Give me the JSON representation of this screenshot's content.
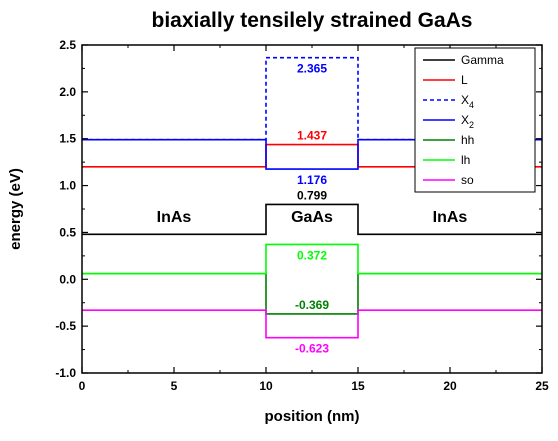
{
  "chart_data": {
    "type": "line",
    "title": "biaxially tensilely strained GaAs",
    "xlabel": "position (nm)",
    "ylabel": "energy (eV)",
    "xlim": [
      0,
      25
    ],
    "ylim": [
      -1.0,
      2.5
    ],
    "x_ticks": [
      0,
      5,
      10,
      15,
      20,
      25
    ],
    "y_ticks": [
      -1.0,
      -0.5,
      0.0,
      0.5,
      1.0,
      1.5,
      2.0,
      2.5
    ],
    "x_tick_labels": [
      "0",
      "5",
      "10",
      "15",
      "20",
      "25"
    ],
    "y_tick_labels": [
      "-1.0",
      "-0.5",
      "0.0",
      "0.5",
      "1.0",
      "1.5",
      "2.0",
      "2.5"
    ],
    "grid": false,
    "legend_position": "top-right",
    "regions": [
      {
        "label": "InAs",
        "x_center": 5
      },
      {
        "label": "GaAs",
        "x_center": 12.5
      },
      {
        "label": "InAs",
        "x_center": 20
      }
    ],
    "series": [
      {
        "name": "Gamma",
        "color": "#000000",
        "dashed": false,
        "points": [
          [
            0,
            0.48
          ],
          [
            10,
            0.48
          ],
          [
            10,
            0.799
          ],
          [
            15,
            0.799
          ],
          [
            15,
            0.48
          ],
          [
            25,
            0.48
          ]
        ]
      },
      {
        "name": "L",
        "color": "#ff0000",
        "dashed": false,
        "points": [
          [
            0,
            1.2
          ],
          [
            10,
            1.2
          ],
          [
            10,
            1.437
          ],
          [
            15,
            1.437
          ],
          [
            15,
            1.2
          ],
          [
            25,
            1.2
          ]
        ]
      },
      {
        "name": "X",
        "subscript": "4",
        "color": "#0000ff",
        "dashed": true,
        "points": [
          [
            0,
            1.49
          ],
          [
            10,
            1.49
          ],
          [
            10,
            2.365
          ],
          [
            15,
            2.365
          ],
          [
            15,
            1.49
          ],
          [
            25,
            1.49
          ]
        ]
      },
      {
        "name": "X",
        "subscript": "2",
        "color": "#0000ff",
        "dashed": false,
        "points": [
          [
            0,
            1.49
          ],
          [
            10,
            1.49
          ],
          [
            10,
            1.176
          ],
          [
            15,
            1.176
          ],
          [
            15,
            1.49
          ],
          [
            25,
            1.49
          ]
        ]
      },
      {
        "name": "hh",
        "color": "#008000",
        "dashed": false,
        "points": [
          [
            0,
            0.06
          ],
          [
            10,
            0.06
          ],
          [
            10,
            -0.369
          ],
          [
            15,
            -0.369
          ],
          [
            15,
            0.06
          ],
          [
            25,
            0.06
          ]
        ]
      },
      {
        "name": "lh",
        "color": "#00ff00",
        "dashed": false,
        "points": [
          [
            0,
            0.06
          ],
          [
            10,
            0.06
          ],
          [
            10,
            0.372
          ],
          [
            15,
            0.372
          ],
          [
            15,
            0.06
          ],
          [
            25,
            0.06
          ]
        ]
      },
      {
        "name": "so",
        "color": "#ff00ff",
        "dashed": false,
        "points": [
          [
            0,
            -0.33
          ],
          [
            10,
            -0.33
          ],
          [
            10,
            -0.623
          ],
          [
            15,
            -0.623
          ],
          [
            15,
            -0.33
          ],
          [
            25,
            -0.33
          ]
        ]
      }
    ],
    "annotations": [
      {
        "text": "2.365",
        "x": 12.5,
        "y": 2.365,
        "color": "#0000ff",
        "anchor": "below"
      },
      {
        "text": "1.437",
        "x": 12.5,
        "y": 1.437,
        "color": "#ff0000",
        "anchor": "above"
      },
      {
        "text": "1.176",
        "x": 12.5,
        "y": 1.176,
        "color": "#0000ff",
        "anchor": "below"
      },
      {
        "text": "0.799",
        "x": 12.5,
        "y": 0.799,
        "color": "#000000",
        "anchor": "above"
      },
      {
        "text": "0.372",
        "x": 12.5,
        "y": 0.372,
        "color": "#00ff00",
        "anchor": "below"
      },
      {
        "text": "-0.369",
        "x": 12.5,
        "y": -0.369,
        "color": "#008000",
        "anchor": "above"
      },
      {
        "text": "-0.623",
        "x": 12.5,
        "y": -0.623,
        "color": "#ff00ff",
        "anchor": "below"
      }
    ]
  }
}
